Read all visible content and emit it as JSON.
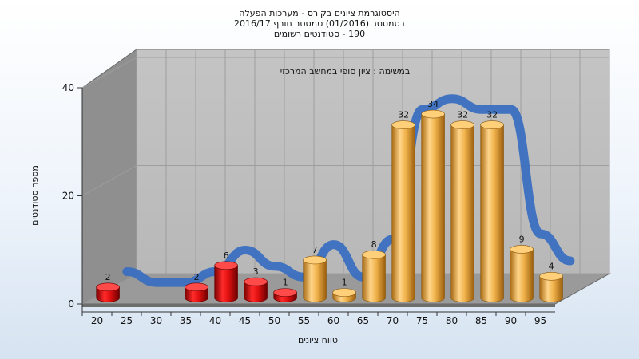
{
  "chart_data": {
    "type": "bar",
    "title_lines": [
      "היסטוגרמת ציונים בקורס - מערכות הפעלה",
      "בסמסטר  (01/2016)  סמסטר חורף  2016/17",
      "190 - סטודנטים רשומים"
    ],
    "annotation": "במשימה : ציון סופי במחשב המרכזי",
    "xlabel": "טווח ציונים",
    "ylabel": "מספר סטודנטים",
    "ylim": [
      0,
      40
    ],
    "yticks": [
      0,
      20,
      40
    ],
    "categories": [
      "20",
      "25",
      "30",
      "35",
      "40",
      "45",
      "50",
      "55",
      "60",
      "65",
      "70",
      "75",
      "80",
      "85",
      "90",
      "95"
    ],
    "values": [
      2,
      0,
      0,
      2,
      6,
      3,
      1,
      7,
      1,
      8,
      32,
      34,
      32,
      32,
      9,
      4
    ],
    "value_labels": [
      "2",
      "",
      "",
      "2",
      "6",
      "3",
      "1",
      "7",
      "1",
      "8",
      "32",
      "34",
      "32",
      "32",
      "9",
      "4"
    ],
    "fail_threshold": 55,
    "colors": {
      "fail": "#e01010",
      "pass": "#f0b24a",
      "curve": "#3a6fc0",
      "wall": "#c9c9c9",
      "side_wall": "#8f8f8f",
      "floor": "#9a9a9a"
    },
    "grid": true
  }
}
